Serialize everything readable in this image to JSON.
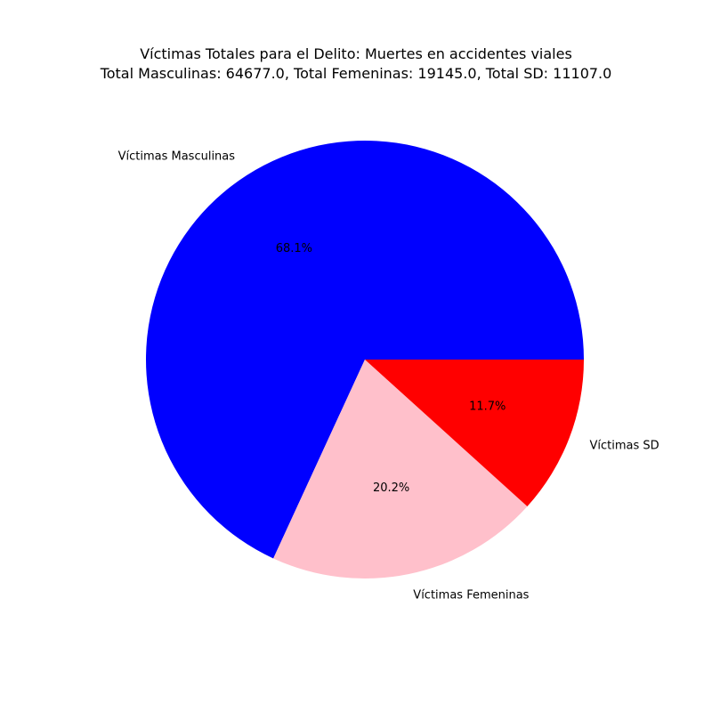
{
  "chart_data": {
    "type": "pie",
    "title": "Víctimas Totales para el Delito: Muertes en accidentes viales",
    "subtitle": "Total Masculinas: 64677.0, Total Femeninas: 19145.0, Total SD: 11107.0",
    "slices": [
      {
        "label": "Víctimas Masculinas",
        "value": 64677.0,
        "pct_label": "68.1%",
        "color": "#0000ff"
      },
      {
        "label": "Víctimas Femeninas",
        "value": 19145.0,
        "pct_label": "20.2%",
        "color": "#ffc0cb"
      },
      {
        "label": "Víctimas SD",
        "value": 11107.0,
        "pct_label": "11.7%",
        "color": "#ff0000"
      }
    ],
    "start_angle_deg": 0,
    "direction": "counterclockwise",
    "legend": "none"
  }
}
